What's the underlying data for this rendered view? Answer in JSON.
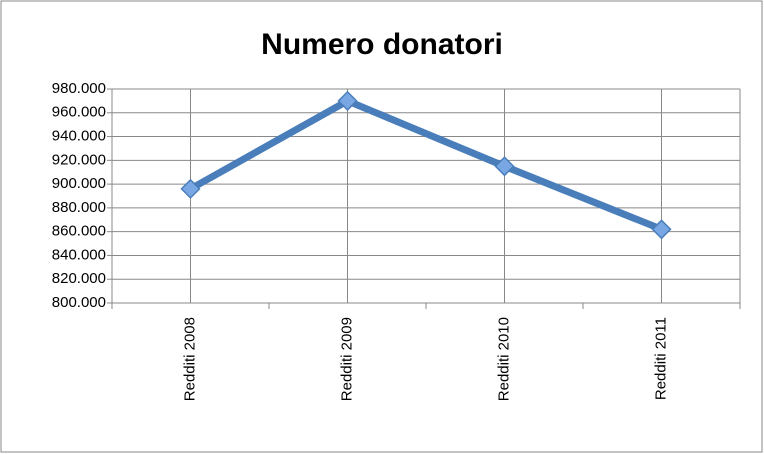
{
  "chart_data": {
    "type": "line",
    "title": "Numero donatori",
    "categories": [
      "Redditi 2008",
      "Redditi 2009",
      "Redditi 2010",
      "Redditi 2011"
    ],
    "values": [
      896000,
      970000,
      915000,
      862000
    ],
    "color": "#4a7ebb",
    "marker_color": "#79a7e3",
    "ylim": [
      800000,
      980000
    ],
    "yticks": [
      {
        "value": 800000,
        "label": "800.000"
      },
      {
        "value": 820000,
        "label": "820.000"
      },
      {
        "value": 840000,
        "label": "840.000"
      },
      {
        "value": 860000,
        "label": "860.000"
      },
      {
        "value": 880000,
        "label": "880.000"
      },
      {
        "value": 900000,
        "label": "900.000"
      },
      {
        "value": 920000,
        "label": "920.000"
      },
      {
        "value": 940000,
        "label": "940.000"
      },
      {
        "value": 960000,
        "label": "960.000"
      },
      {
        "value": 980000,
        "label": "980.000"
      }
    ],
    "grid": true
  }
}
